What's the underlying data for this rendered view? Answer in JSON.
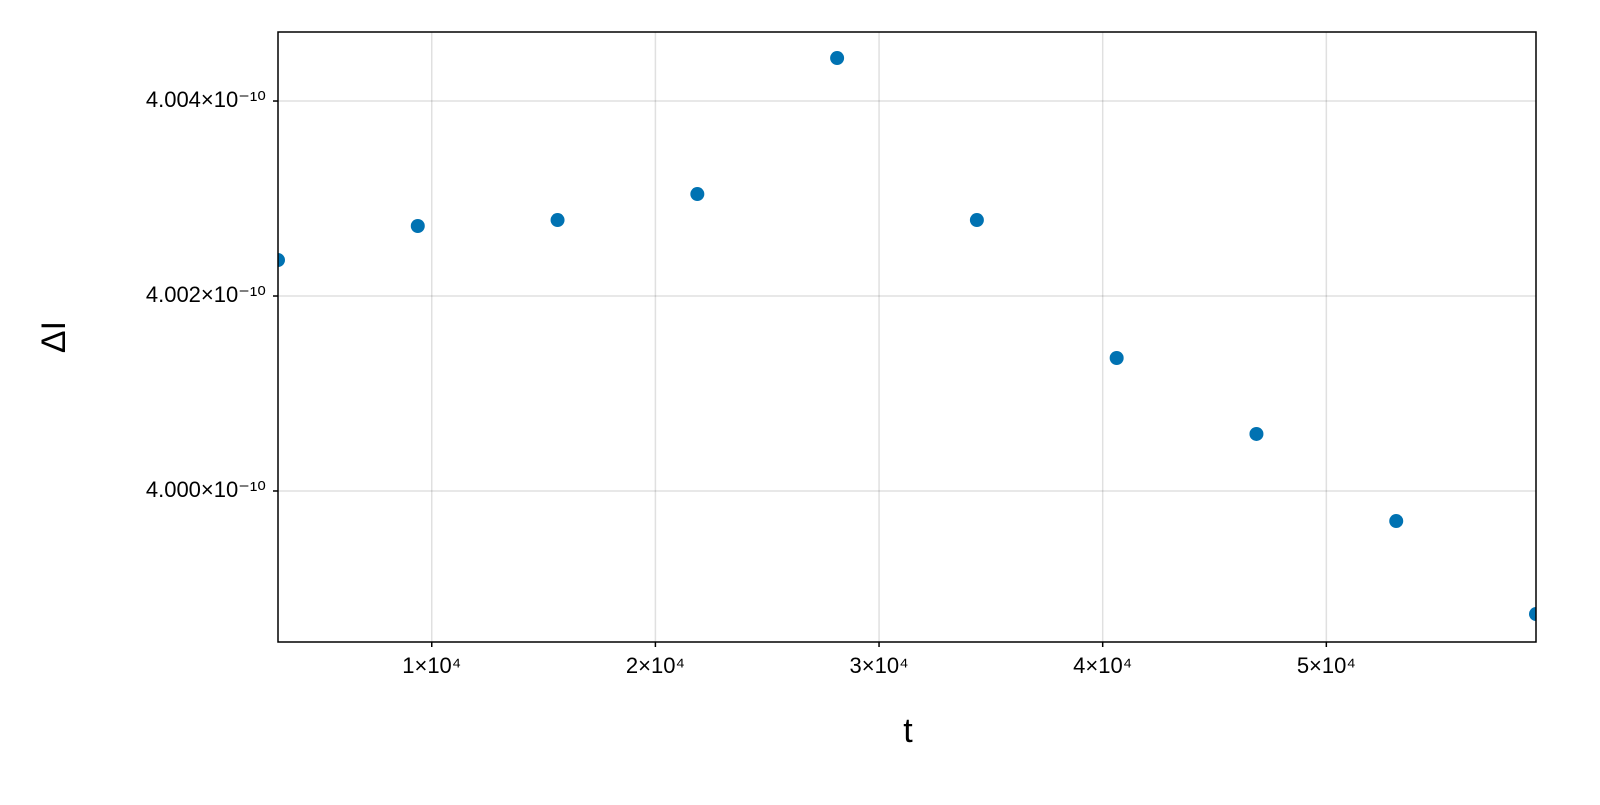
{
  "chart_data": {
    "type": "scatter",
    "x_label": "t",
    "y_label": "ΔI",
    "color": "#0072b2",
    "grid": true,
    "x": [
      3125,
      9375,
      15625,
      21875,
      28125,
      34375,
      40625,
      46875,
      53125,
      59375
    ],
    "values": [
      4.002369e-10,
      4.002718e-10,
      4.002779e-10,
      4.003046e-10,
      4.004441e-10,
      4.002779e-10,
      4.001364e-10,
      4.000585e-10,
      3.999692e-10,
      3.998738e-10
    ],
    "xlim": [
      3125,
      59375
    ],
    "ylim": [
      3.998451e-10,
      4.004708e-10
    ],
    "xticks": [
      {
        "value": 10000,
        "label": "1×10⁴"
      },
      {
        "value": 20000,
        "label": "2×10⁴"
      },
      {
        "value": 30000,
        "label": "3×10⁴"
      },
      {
        "value": 40000,
        "label": "4×10⁴"
      },
      {
        "value": 50000,
        "label": "5×10⁴"
      }
    ],
    "yticks": [
      {
        "value": 4e-10,
        "label": "4.000×10⁻¹⁰"
      },
      {
        "value": 4.002e-10,
        "label": "4.002×10⁻¹⁰"
      },
      {
        "value": 4.004e-10,
        "label": "4.004×10⁻¹⁰"
      }
    ]
  }
}
